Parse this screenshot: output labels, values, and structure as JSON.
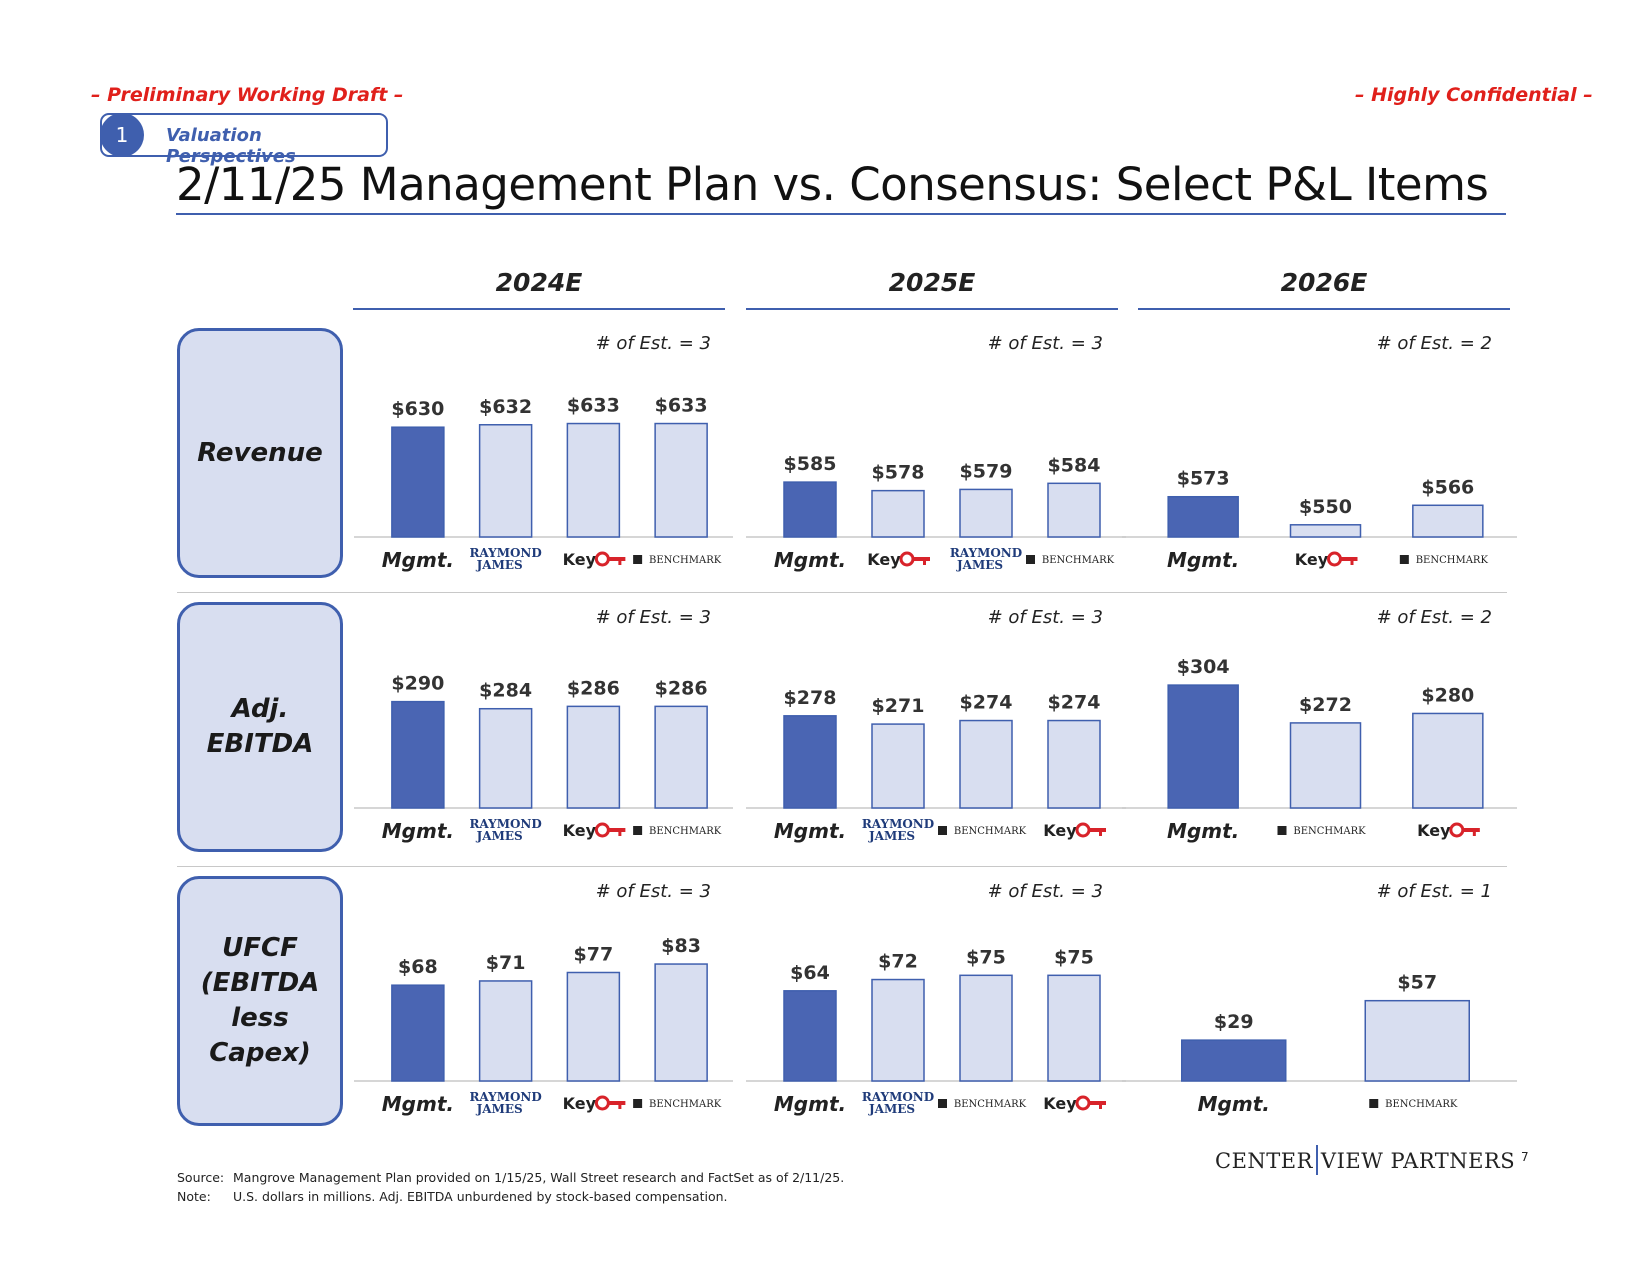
{
  "header": {
    "left_note": "– Preliminary Working Draft –",
    "right_note": "– Highly Confidential –",
    "section_number": "1",
    "section_label": "Valuation Perspectives",
    "title": "2/11/25 Management Plan vs. Consensus: Select P&L Items"
  },
  "years": [
    "2024E",
    "2025E",
    "2026E"
  ],
  "row_labels": {
    "revenue": "Revenue",
    "ebitda_1": "Adj.",
    "ebitda_2": "EBITDA",
    "ufcf_1": "UFCF",
    "ufcf_2": "(EBITDA",
    "ufcf_3": "less",
    "ufcf_4": "Capex)"
  },
  "colors": {
    "mgmt_fill": "#4a65b3",
    "consensus_fill": "#d8def0",
    "bar_stroke": "#3f5fae",
    "accent": "#3f5fae"
  },
  "chart_data": [
    {
      "type": "bar",
      "metric": "Revenue",
      "year": "2024E",
      "est_note": "# of Est. = 3",
      "categories": [
        "Mgmt.",
        "Raymond James",
        "Key",
        "Benchmark"
      ],
      "values": [
        630,
        632,
        633,
        633
      ],
      "labels": [
        "$630",
        "$632",
        "$633",
        "$633"
      ]
    },
    {
      "type": "bar",
      "metric": "Revenue",
      "year": "2025E",
      "est_note": "# of Est. = 3",
      "categories": [
        "Mgmt.",
        "Key",
        "Raymond James",
        "Benchmark"
      ],
      "values": [
        585,
        578,
        579,
        584
      ],
      "labels": [
        "$585",
        "$578",
        "$579",
        "$584"
      ]
    },
    {
      "type": "bar",
      "metric": "Revenue",
      "year": "2026E",
      "est_note": "# of Est. = 2",
      "categories": [
        "Mgmt.",
        "Key",
        "Benchmark"
      ],
      "values": [
        573,
        550,
        566
      ],
      "labels": [
        "$573",
        "$550",
        "$566"
      ]
    },
    {
      "type": "bar",
      "metric": "Adj. EBITDA",
      "year": "2024E",
      "est_note": "# of Est. = 3",
      "categories": [
        "Mgmt.",
        "Raymond James",
        "Key",
        "Benchmark"
      ],
      "values": [
        290,
        284,
        286,
        286
      ],
      "labels": [
        "$290",
        "$284",
        "$286",
        "$286"
      ]
    },
    {
      "type": "bar",
      "metric": "Adj. EBITDA",
      "year": "2025E",
      "est_note": "# of Est. = 3",
      "categories": [
        "Mgmt.",
        "Raymond James",
        "Benchmark",
        "Key"
      ],
      "values": [
        278,
        271,
        274,
        274
      ],
      "labels": [
        "$278",
        "$271",
        "$274",
        "$274"
      ]
    },
    {
      "type": "bar",
      "metric": "Adj. EBITDA",
      "year": "2026E",
      "est_note": "# of Est. = 2",
      "categories": [
        "Mgmt.",
        "Benchmark",
        "Key"
      ],
      "values": [
        304,
        272,
        280
      ],
      "labels": [
        "$304",
        "$272",
        "$280"
      ]
    },
    {
      "type": "bar",
      "metric": "UFCF (EBITDA less Capex)",
      "year": "2024E",
      "est_note": "# of Est. = 3",
      "categories": [
        "Mgmt.",
        "Raymond James",
        "Key",
        "Benchmark"
      ],
      "values": [
        68,
        71,
        77,
        83
      ],
      "labels": [
        "$68",
        "$71",
        "$77",
        "$83"
      ]
    },
    {
      "type": "bar",
      "metric": "UFCF (EBITDA less Capex)",
      "year": "2025E",
      "est_note": "# of Est. = 3",
      "categories": [
        "Mgmt.",
        "Raymond James",
        "Benchmark",
        "Key"
      ],
      "values": [
        64,
        72,
        75,
        75
      ],
      "labels": [
        "$64",
        "$72",
        "$75",
        "$75"
      ]
    },
    {
      "type": "bar",
      "metric": "UFCF (EBITDA less Capex)",
      "year": "2026E",
      "est_note": "# of Est. = 1",
      "categories": [
        "Mgmt.",
        "Benchmark"
      ],
      "values": [
        29,
        57
      ],
      "labels": [
        "$29",
        "$57"
      ]
    }
  ],
  "broker_labels": {
    "mgmt": "Mgmt.",
    "rj_line1": "RAYMOND",
    "rj_line2": "JAMES",
    "key": "Key",
    "benchmark": "BENCHMARK"
  },
  "footer": {
    "source_key": "Source:",
    "source_text": "Mangrove Management Plan provided on 1/15/25, Wall Street research and FactSet as of 2/11/25.",
    "note_key": "Note:",
    "note_text": "U.S. dollars in millions. Adj. EBITDA unburdened by stock-based compensation."
  },
  "branding": {
    "logo_left": "CENTER",
    "logo_right": "VIEW PARTNERS",
    "page_number": "7"
  }
}
